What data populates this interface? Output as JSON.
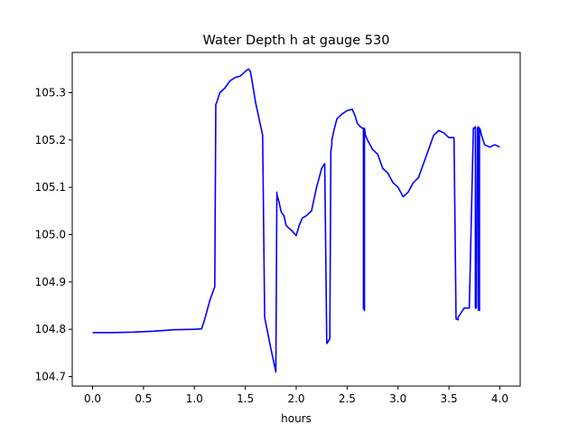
{
  "chart_data": {
    "type": "line",
    "title": "Water Depth h at gauge 530",
    "xlabel": "hours",
    "ylabel": "",
    "xlim": [
      -0.2,
      4.2
    ],
    "ylim": [
      104.68,
      105.385
    ],
    "x_ticks": [
      0.0,
      0.5,
      1.0,
      1.5,
      2.0,
      2.5,
      3.0,
      3.5,
      4.0
    ],
    "x_tick_labels": [
      "0.0",
      "0.5",
      "1.0",
      "1.5",
      "2.0",
      "2.5",
      "3.0",
      "3.5",
      "4.0"
    ],
    "y_ticks": [
      104.7,
      104.8,
      104.9,
      105.0,
      105.1,
      105.2,
      105.3
    ],
    "y_tick_labels": [
      "104.7",
      "104.8",
      "104.9",
      "105.0",
      "105.1",
      "105.2",
      "105.3"
    ],
    "grid": false,
    "series": [
      {
        "color": "#0000ff",
        "x": [
          0.0,
          0.2,
          0.4,
          0.6,
          0.8,
          1.0,
          1.07,
          1.1,
          1.15,
          1.2,
          1.21,
          1.22,
          1.25,
          1.3,
          1.35,
          1.4,
          1.45,
          1.5,
          1.53,
          1.55,
          1.57,
          1.6,
          1.63,
          1.65,
          1.67,
          1.69,
          1.69,
          1.75,
          1.8,
          1.81,
          1.81,
          1.83,
          1.85,
          1.86,
          1.88,
          1.9,
          1.92,
          1.95,
          2.0,
          2.03,
          2.06,
          2.1,
          2.15,
          2.2,
          2.25,
          2.28,
          2.3,
          2.33,
          2.34,
          2.34,
          2.35,
          2.35,
          2.37,
          2.4,
          2.45,
          2.5,
          2.55,
          2.58,
          2.6,
          2.63,
          2.65,
          2.66,
          2.66,
          2.67,
          2.67,
          2.68,
          2.7,
          2.75,
          2.8,
          2.85,
          2.9,
          2.95,
          3.0,
          3.05,
          3.1,
          3.15,
          3.2,
          3.25,
          3.3,
          3.35,
          3.4,
          3.45,
          3.5,
          3.55,
          3.57,
          3.59,
          3.59,
          3.62,
          3.65,
          3.7,
          3.74,
          3.75,
          3.76,
          3.76,
          3.77,
          3.78,
          3.79,
          3.79,
          3.8,
          3.8,
          3.81,
          3.82,
          3.85,
          3.9,
          3.95,
          4.0
        ],
        "y": [
          104.793,
          104.793,
          104.794,
          104.796,
          104.799,
          104.8,
          104.801,
          104.82,
          104.86,
          104.89,
          105.275,
          105.28,
          105.3,
          105.31,
          105.325,
          105.332,
          105.335,
          105.345,
          105.35,
          105.345,
          105.32,
          105.28,
          105.25,
          105.23,
          105.21,
          104.825,
          104.825,
          104.76,
          104.71,
          105.09,
          105.085,
          105.07,
          105.05,
          105.045,
          105.04,
          105.02,
          105.015,
          105.01,
          104.998,
          105.02,
          105.035,
          105.04,
          105.05,
          105.1,
          105.14,
          105.15,
          104.77,
          104.78,
          105.175,
          105.175,
          105.19,
          105.2,
          105.22,
          105.245,
          105.255,
          105.262,
          105.265,
          105.25,
          105.235,
          105.228,
          105.225,
          105.225,
          104.845,
          104.84,
          105.225,
          105.21,
          105.2,
          105.18,
          105.17,
          105.14,
          105.13,
          105.11,
          105.1,
          105.08,
          105.09,
          105.11,
          105.12,
          105.15,
          105.18,
          105.21,
          105.22,
          105.215,
          105.205,
          105.205,
          104.822,
          104.82,
          104.825,
          104.835,
          104.845,
          104.845,
          105.225,
          105.225,
          105.228,
          104.845,
          104.845,
          105.225,
          105.228,
          104.84,
          104.84,
          105.225,
          105.22,
          105.21,
          105.19,
          105.185,
          105.19,
          105.185
        ]
      }
    ]
  }
}
